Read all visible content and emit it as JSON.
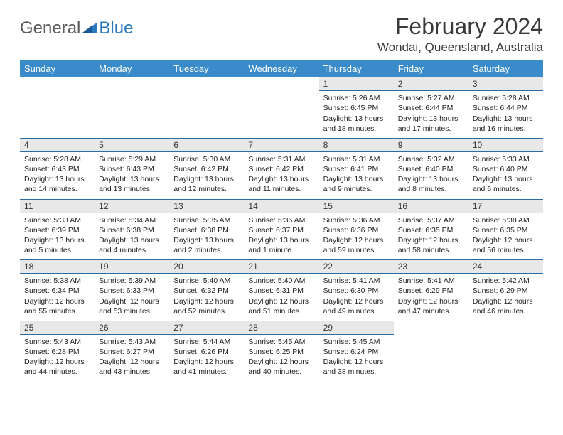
{
  "brand": {
    "part1": "General",
    "part2": "Blue"
  },
  "title": "February 2024",
  "location": "Wondai, Queensland, Australia",
  "colors": {
    "header_bg": "#3a8bc9",
    "rule": "#2a6ca8",
    "daynum_bg": "#e8e8e8",
    "text": "#222222",
    "logo_gray": "#5a5a5a",
    "logo_blue": "#2878bd"
  },
  "weekdays": [
    "Sunday",
    "Monday",
    "Tuesday",
    "Wednesday",
    "Thursday",
    "Friday",
    "Saturday"
  ],
  "weeks": [
    {
      "nums": [
        "",
        "",
        "",
        "",
        "1",
        "2",
        "3"
      ],
      "cells": [
        null,
        null,
        null,
        null,
        {
          "sunrise": "5:26 AM",
          "sunset": "6:45 PM",
          "daylight": "13 hours and 18 minutes."
        },
        {
          "sunrise": "5:27 AM",
          "sunset": "6:44 PM",
          "daylight": "13 hours and 17 minutes."
        },
        {
          "sunrise": "5:28 AM",
          "sunset": "6:44 PM",
          "daylight": "13 hours and 16 minutes."
        }
      ]
    },
    {
      "nums": [
        "4",
        "5",
        "6",
        "7",
        "8",
        "9",
        "10"
      ],
      "cells": [
        {
          "sunrise": "5:28 AM",
          "sunset": "6:43 PM",
          "daylight": "13 hours and 14 minutes."
        },
        {
          "sunrise": "5:29 AM",
          "sunset": "6:43 PM",
          "daylight": "13 hours and 13 minutes."
        },
        {
          "sunrise": "5:30 AM",
          "sunset": "6:42 PM",
          "daylight": "13 hours and 12 minutes."
        },
        {
          "sunrise": "5:31 AM",
          "sunset": "6:42 PM",
          "daylight": "13 hours and 11 minutes."
        },
        {
          "sunrise": "5:31 AM",
          "sunset": "6:41 PM",
          "daylight": "13 hours and 9 minutes."
        },
        {
          "sunrise": "5:32 AM",
          "sunset": "6:40 PM",
          "daylight": "13 hours and 8 minutes."
        },
        {
          "sunrise": "5:33 AM",
          "sunset": "6:40 PM",
          "daylight": "13 hours and 6 minutes."
        }
      ]
    },
    {
      "nums": [
        "11",
        "12",
        "13",
        "14",
        "15",
        "16",
        "17"
      ],
      "cells": [
        {
          "sunrise": "5:33 AM",
          "sunset": "6:39 PM",
          "daylight": "13 hours and 5 minutes."
        },
        {
          "sunrise": "5:34 AM",
          "sunset": "6:38 PM",
          "daylight": "13 hours and 4 minutes."
        },
        {
          "sunrise": "5:35 AM",
          "sunset": "6:38 PM",
          "daylight": "13 hours and 2 minutes."
        },
        {
          "sunrise": "5:36 AM",
          "sunset": "6:37 PM",
          "daylight": "13 hours and 1 minute."
        },
        {
          "sunrise": "5:36 AM",
          "sunset": "6:36 PM",
          "daylight": "12 hours and 59 minutes."
        },
        {
          "sunrise": "5:37 AM",
          "sunset": "6:35 PM",
          "daylight": "12 hours and 58 minutes."
        },
        {
          "sunrise": "5:38 AM",
          "sunset": "6:35 PM",
          "daylight": "12 hours and 56 minutes."
        }
      ]
    },
    {
      "nums": [
        "18",
        "19",
        "20",
        "21",
        "22",
        "23",
        "24"
      ],
      "cells": [
        {
          "sunrise": "5:38 AM",
          "sunset": "6:34 PM",
          "daylight": "12 hours and 55 minutes."
        },
        {
          "sunrise": "5:39 AM",
          "sunset": "6:33 PM",
          "daylight": "12 hours and 53 minutes."
        },
        {
          "sunrise": "5:40 AM",
          "sunset": "6:32 PM",
          "daylight": "12 hours and 52 minutes."
        },
        {
          "sunrise": "5:40 AM",
          "sunset": "6:31 PM",
          "daylight": "12 hours and 51 minutes."
        },
        {
          "sunrise": "5:41 AM",
          "sunset": "6:30 PM",
          "daylight": "12 hours and 49 minutes."
        },
        {
          "sunrise": "5:41 AM",
          "sunset": "6:29 PM",
          "daylight": "12 hours and 47 minutes."
        },
        {
          "sunrise": "5:42 AM",
          "sunset": "6:29 PM",
          "daylight": "12 hours and 46 minutes."
        }
      ]
    },
    {
      "nums": [
        "25",
        "26",
        "27",
        "28",
        "29",
        "",
        ""
      ],
      "cells": [
        {
          "sunrise": "5:43 AM",
          "sunset": "6:28 PM",
          "daylight": "12 hours and 44 minutes."
        },
        {
          "sunrise": "5:43 AM",
          "sunset": "6:27 PM",
          "daylight": "12 hours and 43 minutes."
        },
        {
          "sunrise": "5:44 AM",
          "sunset": "6:26 PM",
          "daylight": "12 hours and 41 minutes."
        },
        {
          "sunrise": "5:45 AM",
          "sunset": "6:25 PM",
          "daylight": "12 hours and 40 minutes."
        },
        {
          "sunrise": "5:45 AM",
          "sunset": "6:24 PM",
          "daylight": "12 hours and 38 minutes."
        },
        null,
        null
      ]
    }
  ],
  "labels": {
    "sunrise": "Sunrise: ",
    "sunset": "Sunset: ",
    "daylight": "Daylight: "
  }
}
